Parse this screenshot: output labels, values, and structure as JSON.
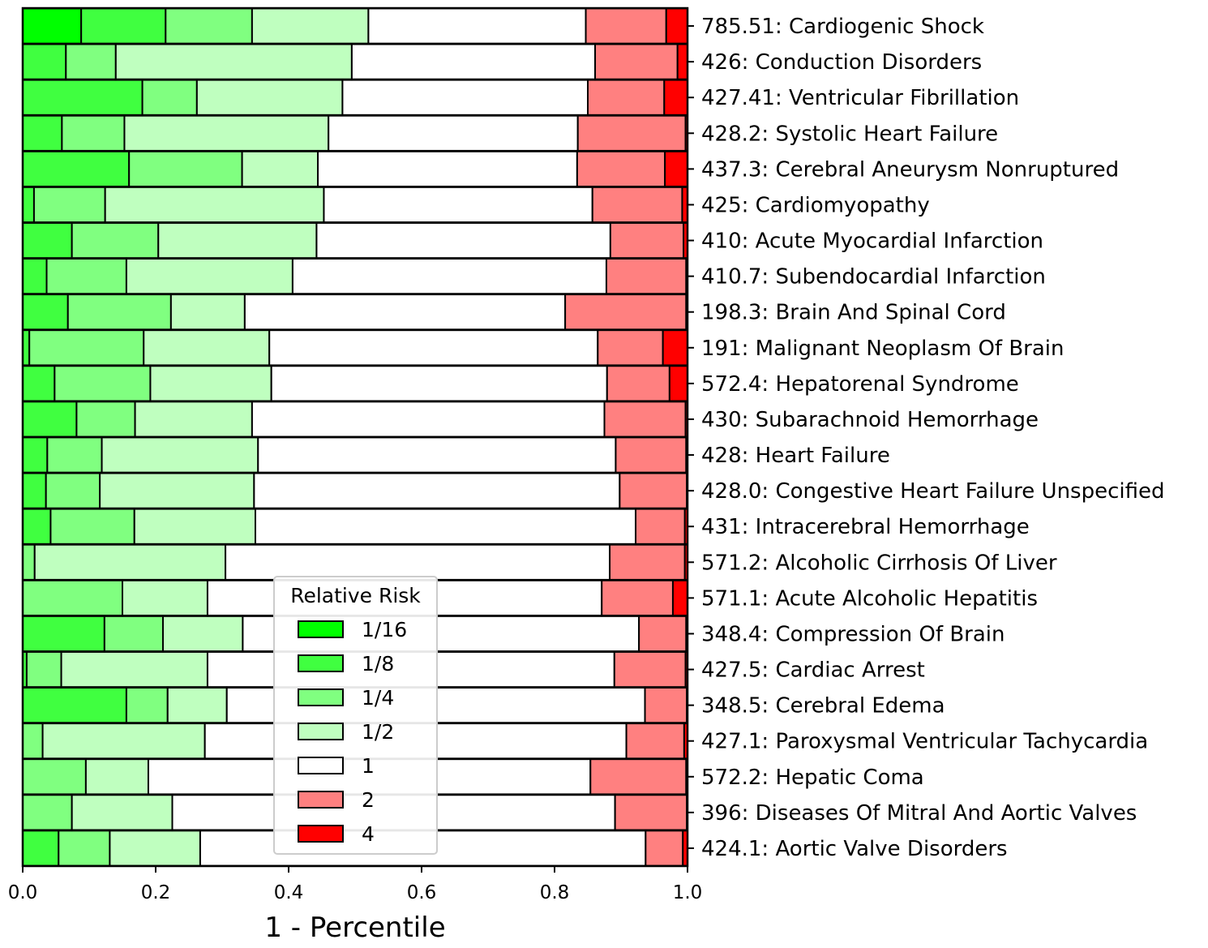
{
  "chart_data": {
    "type": "bar",
    "orientation": "horizontal",
    "stacked": true,
    "xlabel": "1 - Percentile",
    "ylabel": "",
    "title": "",
    "xlim": [
      0.0,
      1.0
    ],
    "xticks": [
      "0.0",
      "0.2",
      "0.4",
      "0.6",
      "0.8",
      "1.0"
    ],
    "legend": {
      "title": "Relative Risk",
      "placement": "lower-center",
      "entries": [
        {
          "label": "1/16",
          "color": "#00ff00"
        },
        {
          "label": "1/8",
          "color": "#40ff40"
        },
        {
          "label": "1/4",
          "color": "#80ff80"
        },
        {
          "label": "1/2",
          "color": "#bfffbf"
        },
        {
          "label": "1",
          "color": "#ffffff"
        },
        {
          "label": "2",
          "color": "#ff8080"
        },
        {
          "label": "4",
          "color": "#ff0000"
        }
      ]
    },
    "categories": [
      "785.51: Cardiogenic Shock",
      "426: Conduction Disorders",
      "427.41: Ventricular Fibrillation",
      "428.2: Systolic Heart Failure",
      "437.3: Cerebral Aneurysm Nonruptured",
      "425: Cardiomyopathy",
      "410: Acute Myocardial Infarction",
      "410.7: Subendocardial Infarction",
      "198.3: Brain And Spinal Cord",
      "191: Malignant Neoplasm Of Brain",
      "572.4: Hepatorenal Syndrome",
      "430: Subarachnoid Hemorrhage",
      "428: Heart Failure",
      "428.0: Congestive Heart Failure Unspecified",
      "431: Intracerebral Hemorrhage",
      "571.2: Alcoholic Cirrhosis Of Liver",
      "571.1: Acute Alcoholic Hepatitis",
      "348.4: Compression Of Brain",
      "427.5: Cardiac Arrest",
      "348.5: Cerebral Edema",
      "427.1: Paroxysmal Ventricular Tachycardia",
      "572.2: Hepatic Coma",
      "396: Diseases Of Mitral And Aortic Valves",
      "424.1: Aortic Valve Disorders"
    ],
    "series": [
      {
        "name": "1/16",
        "values": [
          0.088,
          0.0,
          0.0,
          0.0,
          0.0,
          0.0,
          0.0,
          0.0,
          0.0,
          0.0,
          0.0,
          0.0,
          0.0,
          0.0,
          0.0,
          0.0,
          0.0,
          0.0,
          0.0,
          0.0,
          0.0,
          0.0,
          0.0,
          0.0
        ]
      },
      {
        "name": "1/8",
        "values": [
          0.127,
          0.065,
          0.18,
          0.059,
          0.16,
          0.017,
          0.074,
          0.036,
          0.068,
          0.01,
          0.048,
          0.081,
          0.037,
          0.035,
          0.042,
          0.0,
          0.0,
          0.123,
          0.006,
          0.156,
          0.0,
          0.0,
          0.0,
          0.054
        ]
      },
      {
        "name": "1/4",
        "values": [
          0.13,
          0.075,
          0.082,
          0.094,
          0.17,
          0.107,
          0.13,
          0.12,
          0.155,
          0.172,
          0.144,
          0.088,
          0.082,
          0.081,
          0.126,
          0.018,
          0.15,
          0.088,
          0.052,
          0.062,
          0.03,
          0.095,
          0.074,
          0.077
        ]
      },
      {
        "name": "1/2",
        "values": [
          0.175,
          0.355,
          0.219,
          0.307,
          0.114,
          0.329,
          0.238,
          0.25,
          0.111,
          0.189,
          0.182,
          0.176,
          0.235,
          0.232,
          0.182,
          0.287,
          0.128,
          0.12,
          0.22,
          0.089,
          0.244,
          0.094,
          0.151,
          0.136
        ]
      },
      {
        "name": "1",
        "values": [
          0.327,
          0.366,
          0.369,
          0.375,
          0.39,
          0.404,
          0.442,
          0.472,
          0.482,
          0.494,
          0.505,
          0.53,
          0.538,
          0.55,
          0.572,
          0.578,
          0.593,
          0.596,
          0.612,
          0.629,
          0.634,
          0.665,
          0.666,
          0.67
        ]
      },
      {
        "name": "2",
        "values": [
          0.121,
          0.124,
          0.115,
          0.162,
          0.132,
          0.135,
          0.11,
          0.12,
          0.182,
          0.098,
          0.094,
          0.122,
          0.106,
          0.101,
          0.074,
          0.113,
          0.107,
          0.071,
          0.107,
          0.063,
          0.087,
          0.144,
          0.108,
          0.056
        ]
      },
      {
        "name": "4",
        "values": [
          0.032,
          0.015,
          0.035,
          0.003,
          0.034,
          0.008,
          0.006,
          0.002,
          0.002,
          0.037,
          0.027,
          0.003,
          0.002,
          0.001,
          0.004,
          0.004,
          0.022,
          0.002,
          0.003,
          0.001,
          0.005,
          0.002,
          0.001,
          0.007
        ]
      }
    ]
  }
}
